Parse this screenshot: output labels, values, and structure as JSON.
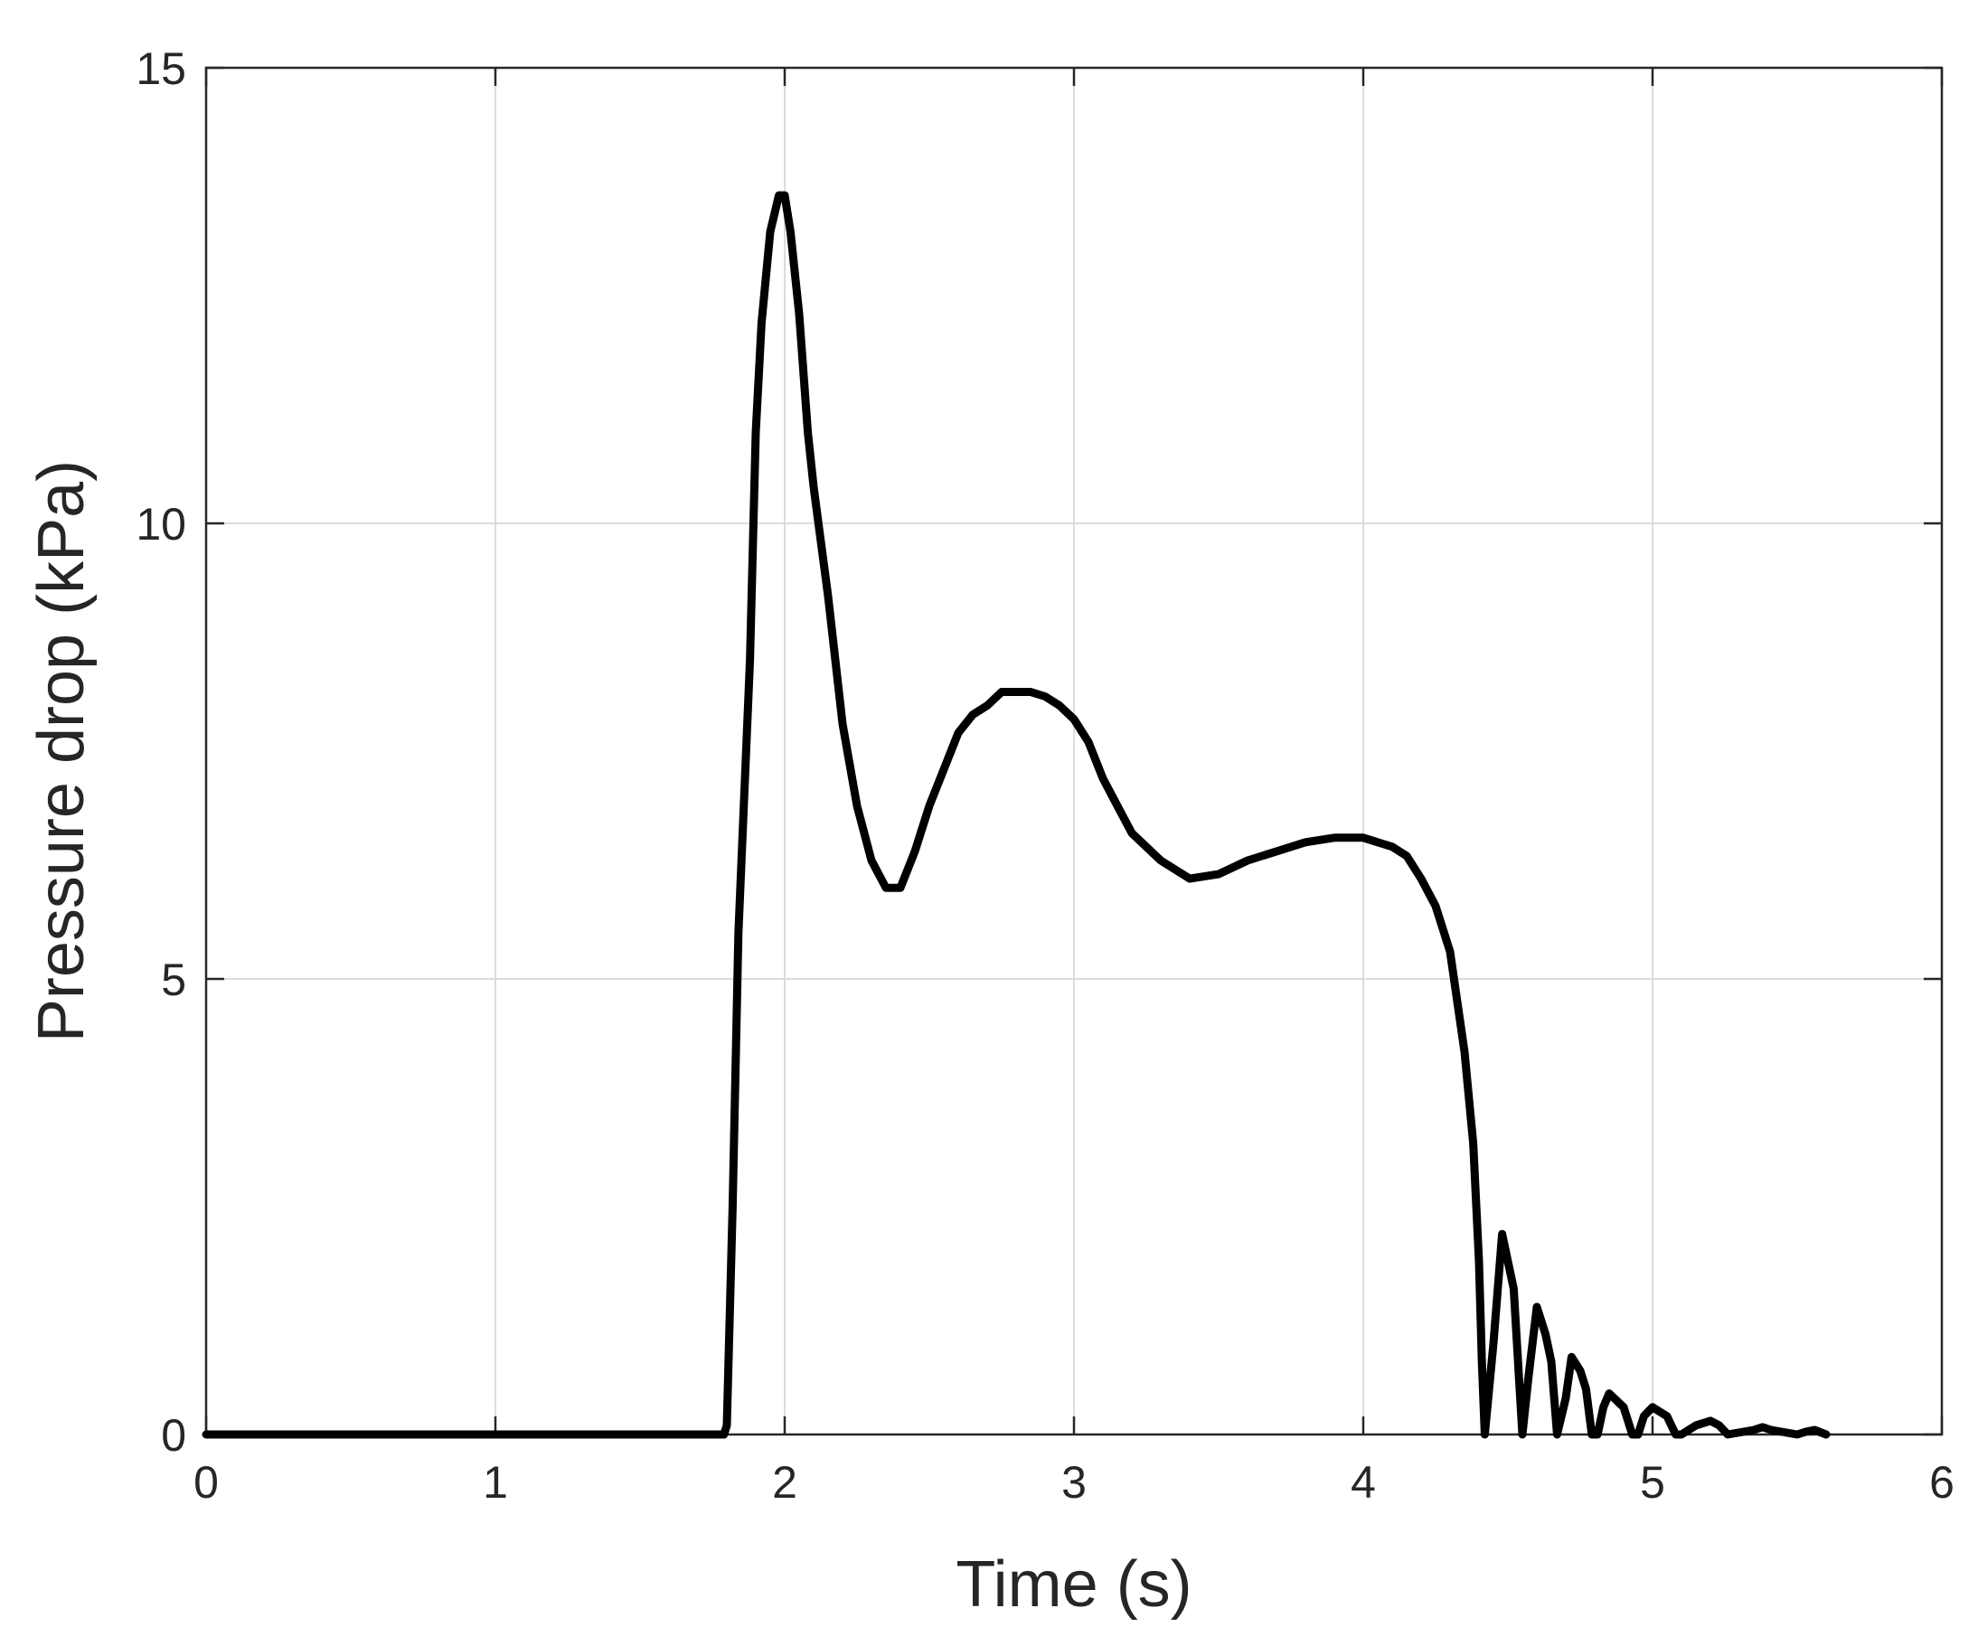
{
  "chart_data": {
    "type": "line",
    "title": "",
    "xlabel": "Time (s)",
    "ylabel": "Pressure drop (kPa)",
    "xlim": [
      0,
      6
    ],
    "ylim": [
      0,
      15
    ],
    "xticks": [
      0,
      1,
      2,
      3,
      4,
      5,
      6
    ],
    "yticks": [
      0,
      5,
      10,
      15
    ],
    "xtick_labels": [
      "0",
      "1",
      "2",
      "3",
      "4",
      "5",
      "6"
    ],
    "ytick_labels": [
      "0",
      "5",
      "10",
      "15"
    ],
    "grid": true,
    "legend": "none",
    "colors": {
      "line": "#000000",
      "grid": "#dcdcdc",
      "axes": "#262626"
    },
    "series": [
      {
        "x": [
          0,
          0.5,
          1.0,
          1.5,
          1.75,
          1.79,
          1.8,
          1.82,
          1.84,
          1.86,
          1.88,
          1.9,
          1.92,
          1.95,
          1.98,
          2.0,
          2.02,
          2.05,
          2.08,
          2.1,
          2.15,
          2.2,
          2.25,
          2.3,
          2.35,
          2.4,
          2.45,
          2.5,
          2.55,
          2.6,
          2.65,
          2.7,
          2.75,
          2.8,
          2.85,
          2.9,
          2.95,
          3.0,
          3.05,
          3.1,
          3.15,
          3.2,
          3.3,
          3.4,
          3.5,
          3.6,
          3.7,
          3.8,
          3.9,
          4.0,
          4.1,
          4.15,
          4.2,
          4.25,
          4.3,
          4.35,
          4.38,
          4.4,
          4.41,
          4.42,
          4.45,
          4.48,
          4.5,
          4.52,
          4.55,
          4.57,
          4.6,
          4.63,
          4.65,
          4.67,
          4.7,
          4.72,
          4.75,
          4.77,
          4.79,
          4.81,
          4.83,
          4.85,
          4.9,
          4.93,
          4.95,
          4.97,
          5.0,
          5.05,
          5.08,
          5.1,
          5.15,
          5.2,
          5.23,
          5.26,
          5.35,
          5.38,
          5.41,
          5.5,
          5.53,
          5.56,
          5.6
        ],
        "y": [
          0,
          0,
          0,
          0,
          0,
          0,
          0.1,
          2.5,
          5.5,
          7.0,
          8.5,
          11.0,
          12.2,
          13.2,
          13.6,
          13.6,
          13.2,
          12.3,
          11.0,
          10.4,
          9.2,
          7.8,
          6.9,
          6.3,
          6.0,
          6.0,
          6.4,
          6.9,
          7.3,
          7.7,
          7.9,
          8.0,
          8.15,
          8.15,
          8.15,
          8.1,
          8.0,
          7.85,
          7.6,
          7.2,
          6.9,
          6.6,
          6.3,
          6.1,
          6.15,
          6.3,
          6.4,
          6.5,
          6.55,
          6.55,
          6.45,
          6.35,
          6.1,
          5.8,
          5.3,
          4.2,
          3.2,
          1.9,
          0.8,
          0,
          1.0,
          2.2,
          1.9,
          1.6,
          0,
          0.6,
          1.4,
          1.1,
          0.8,
          0,
          0.4,
          0.85,
          0.7,
          0.5,
          0,
          0,
          0.3,
          0.45,
          0.3,
          0,
          0,
          0.2,
          0.3,
          0.2,
          0,
          0,
          0.1,
          0.15,
          0.1,
          0,
          0.05,
          0.08,
          0.05,
          0,
          0.03,
          0.05,
          0
        ]
      }
    ]
  }
}
